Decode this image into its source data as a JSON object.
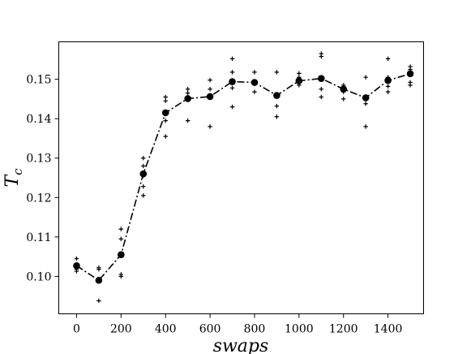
{
  "chart_data": {
    "type": "line",
    "xlabel": "swaps",
    "ylabel": "T_c",
    "xlim": [
      -80,
      1560
    ],
    "ylim": [
      0.0905,
      0.1595
    ],
    "xticks": [
      0,
      200,
      400,
      600,
      800,
      1000,
      1200,
      1400
    ],
    "yticks": [
      0.1,
      0.11,
      0.12,
      0.13,
      0.14,
      0.15
    ],
    "xtick_labels": [
      "0",
      "200",
      "400",
      "600",
      "800",
      "1000",
      "1200",
      "1400"
    ],
    "ytick_labels": [
      "0.10",
      "0.11",
      "0.12",
      "0.13",
      "0.14",
      "0.15"
    ],
    "legend": "none",
    "grid": false,
    "series": [
      {
        "style": "dash-dot line with filled circle markers",
        "x": [
          0,
          100,
          200,
          300,
          400,
          500,
          600,
          700,
          800,
          900,
          1000,
          1100,
          1200,
          1300,
          1400,
          1500
        ],
        "y": [
          0.1027,
          0.099,
          0.1055,
          0.126,
          0.1415,
          0.1451,
          0.1456,
          0.1494,
          0.1492,
          0.1459,
          0.1496,
          0.1502,
          0.1475,
          0.1453,
          0.1497,
          0.1514
        ]
      },
      {
        "style": "plus markers",
        "x": [
          0,
          0,
          0,
          0,
          100,
          100,
          100,
          100,
          200,
          200,
          200,
          200,
          300,
          300,
          300,
          300,
          300,
          400,
          400,
          400,
          400,
          500,
          500,
          500,
          500,
          600,
          600,
          600,
          600,
          700,
          700,
          700,
          700,
          800,
          800,
          800,
          800,
          900,
          900,
          900,
          900,
          1000,
          1000,
          1000,
          1000,
          1100,
          1100,
          1100,
          1100,
          1200,
          1200,
          1200,
          1300,
          1300,
          1300,
          1300,
          1400,
          1400,
          1400,
          1400,
          1500,
          1500,
          1500,
          1500
        ],
        "y": [
          0.1045,
          0.1025,
          0.1018,
          0.1013,
          0.1022,
          0.1018,
          0.099,
          0.0938,
          0.112,
          0.1095,
          0.1005,
          0.1,
          0.13,
          0.128,
          0.1255,
          0.1228,
          0.1205,
          0.1455,
          0.1445,
          0.1395,
          0.1355,
          0.1475,
          0.1465,
          0.1455,
          0.1395,
          0.1498,
          0.1475,
          0.1458,
          0.138,
          0.1552,
          0.1518,
          0.1478,
          0.143,
          0.1518,
          0.1492,
          0.1488,
          0.1468,
          0.1518,
          0.146,
          0.1432,
          0.1405,
          0.1515,
          0.1505,
          0.1495,
          0.1485,
          0.1565,
          0.1558,
          0.1475,
          0.1455,
          0.1485,
          0.1468,
          0.145,
          0.1505,
          0.145,
          0.1438,
          0.138,
          0.1552,
          0.1505,
          0.1482,
          0.1468,
          0.1532,
          0.1525,
          0.1492,
          0.1485
        ]
      }
    ]
  }
}
